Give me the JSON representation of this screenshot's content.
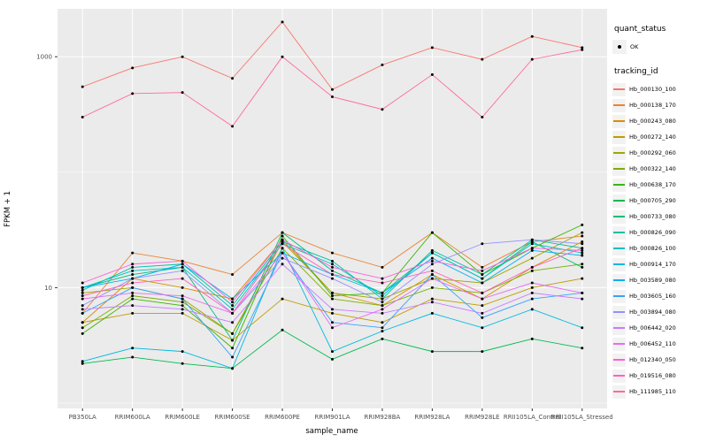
{
  "chart_data": {
    "type": "line",
    "title": "",
    "xlabel": "sample_name",
    "ylabel": "FPKM + 1",
    "y_scale": "log10",
    "ylim": [
      0.9,
      2600
    ],
    "y_ticks": [
      10,
      1000
    ],
    "y_minor": [
      1,
      100
    ],
    "panel_bg": "#EBEBEB",
    "grid_color": "#FFFFFF",
    "point_color": "#000000",
    "legend_position": "right",
    "categories": [
      "PB350LA",
      "RRIM600LA",
      "RRIM600LE",
      "RRIM600SE",
      "RRIM600PE",
      "RRIM901LA",
      "RRIM928BA",
      "RRIM928LA",
      "RRIM928LE",
      "RRII105LA_Control",
      "RRII105LA_Stressed"
    ],
    "series": [
      {
        "name": "Hb_000130_100",
        "color": "#F8766D",
        "values": [
          550,
          800,
          1000,
          650,
          2000,
          520,
          850,
          1200,
          950,
          1500,
          1200
        ]
      },
      {
        "name": "Hb_000138_170",
        "color": "#EA8331",
        "values": [
          6,
          20,
          17,
          13,
          30,
          20,
          15,
          30,
          15,
          25,
          28
        ]
      },
      {
        "name": "Hb_000243_080",
        "color": "#D89000",
        "values": [
          5,
          12,
          10,
          8,
          26,
          9,
          7,
          13,
          8,
          15,
          25
        ]
      },
      {
        "name": "Hb_000272_140",
        "color": "#C09B00",
        "values": [
          5,
          6,
          6,
          3.5,
          8,
          6,
          5,
          8,
          7,
          10,
          12
        ]
      },
      {
        "name": "Hb_000292_060",
        "color": "#A3A500",
        "values": [
          9,
          10,
          8,
          4,
          25,
          9,
          8,
          12,
          11,
          18,
          30
        ]
      },
      {
        "name": "Hb_000322_140",
        "color": "#7CAE00",
        "values": [
          4.5,
          8.5,
          7.5,
          4,
          22,
          8,
          7,
          10,
          9,
          14,
          16
        ]
      },
      {
        "name": "Hb_000638_170",
        "color": "#39B600",
        "values": [
          4,
          8,
          7,
          3,
          28,
          8.5,
          9,
          30,
          13,
          22,
          35
        ]
      },
      {
        "name": "Hb_000705_290",
        "color": "#00BB4E",
        "values": [
          2.2,
          2.5,
          2.2,
          2.0,
          4.3,
          2.4,
          3.6,
          2.8,
          2.8,
          3.6,
          3.0
        ]
      },
      {
        "name": "Hb_000733_080",
        "color": "#00BF7D",
        "values": [
          10,
          13,
          15,
          3.5,
          30,
          14,
          9,
          20,
          12,
          25,
          15
        ]
      },
      {
        "name": "Hb_000826_090",
        "color": "#00C1A3",
        "values": [
          9.5,
          15,
          16,
          7,
          25,
          17,
          8,
          21,
          13,
          26,
          22
        ]
      },
      {
        "name": "Hb_000826_100",
        "color": "#00BFC4",
        "values": [
          10,
          14,
          15,
          6.5,
          24,
          16,
          8.5,
          20,
          12,
          24,
          20
        ]
      },
      {
        "name": "Hb_000914_170",
        "color": "#00BAE0",
        "values": [
          2.3,
          3,
          2.8,
          2.0,
          22,
          2.8,
          4.2,
          6,
          4.5,
          6.5,
          4.5
        ]
      },
      {
        "name": "Hb_003589_080",
        "color": "#00B0F6",
        "values": [
          10,
          12,
          16,
          8,
          20,
          13,
          9,
          18,
          11,
          21,
          19
        ]
      },
      {
        "name": "Hb_003605_160",
        "color": "#35A2FF",
        "values": [
          6,
          10,
          8,
          2.5,
          20,
          5,
          4.5,
          13,
          5.5,
          8,
          9
        ]
      },
      {
        "name": "Hb_003894_080",
        "color": "#9590FF",
        "values": [
          7,
          12,
          14,
          6,
          18,
          12,
          7.5,
          16,
          24,
          26,
          24
        ]
      },
      {
        "name": "Hb_006442_020",
        "color": "#C77CFF",
        "values": [
          6.5,
          7,
          6.5,
          5,
          16,
          6.5,
          6,
          7.5,
          6,
          9,
          8
        ]
      },
      {
        "name": "Hb_006452_110",
        "color": "#E76BF3",
        "values": [
          8,
          9,
          8.5,
          6,
          20,
          4.5,
          6.5,
          12,
          8,
          11,
          9
        ]
      },
      {
        "name": "Hb_012340_050",
        "color": "#FA62DB",
        "values": [
          11,
          16,
          17,
          7.5,
          26,
          15,
          12,
          17,
          14,
          22,
          21
        ]
      },
      {
        "name": "Hb_019516_080",
        "color": "#FF62BC",
        "values": [
          8.5,
          11,
          12,
          6,
          24,
          13,
          11,
          14,
          9,
          15,
          22
        ]
      },
      {
        "name": "Hb_111985_110",
        "color": "#FF6A98",
        "values": [
          300,
          480,
          490,
          250,
          1000,
          450,
          350,
          700,
          300,
          950,
          1150
        ]
      }
    ]
  },
  "legend": {
    "quant_status": {
      "title": "quant_status",
      "items": [
        {
          "label": "OK",
          "marker": "point",
          "color": "#000000"
        }
      ]
    },
    "tracking_id": {
      "title": "tracking_id"
    }
  }
}
